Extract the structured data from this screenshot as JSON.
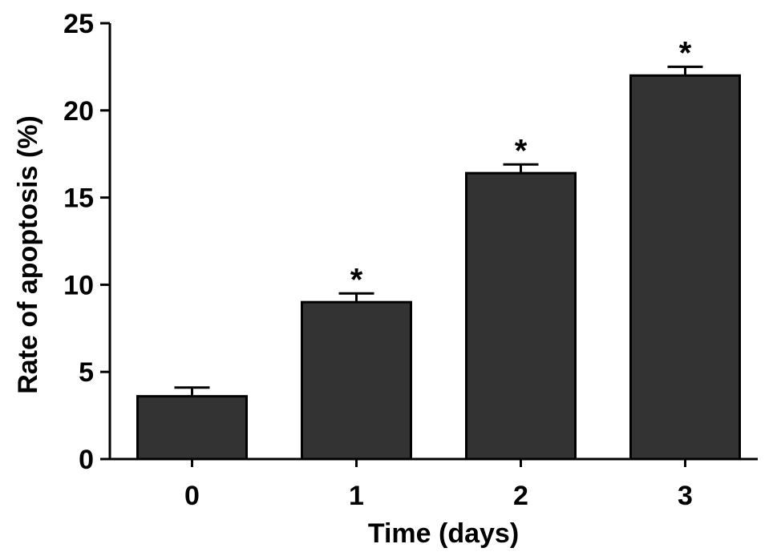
{
  "chart_data": {
    "type": "bar",
    "title": "",
    "xlabel": "Time (days)",
    "ylabel": "Rate of apoptosis (%)",
    "categories": [
      "0",
      "1",
      "2",
      "3"
    ],
    "values": [
      3.6,
      9.0,
      16.4,
      22.0
    ],
    "error_bars": [
      0.5,
      0.5,
      0.5,
      0.5
    ],
    "significance_marks": [
      "",
      "*",
      "*",
      "*"
    ],
    "ylim": [
      0,
      25
    ],
    "yticks": [
      0,
      5,
      10,
      15,
      20,
      25
    ],
    "ytick_labels": [
      "0",
      "5",
      "10",
      "15",
      "20",
      "25"
    ],
    "grid": false,
    "legend": "none",
    "colors": {
      "bar_fill": "#333333",
      "bar_stroke": "#000000",
      "axis": "#000000"
    }
  }
}
